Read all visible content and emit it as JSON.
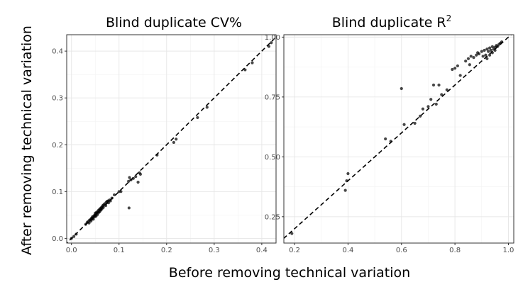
{
  "figure": {
    "xlabel": "Before removing technical variation",
    "ylabel": "After removing technical variation"
  },
  "chart_data": [
    {
      "type": "scatter",
      "title": "Blind duplicate CV%",
      "title_superscript": "",
      "xlim": [
        -0.01,
        0.43
      ],
      "ylim": [
        -0.01,
        0.435
      ],
      "x_ticks": [
        0.0,
        0.1,
        0.2,
        0.3,
        0.4
      ],
      "x_tick_labels": [
        "0.0",
        "0.1",
        "0.2",
        "0.3",
        "0.4"
      ],
      "y_ticks": [
        0.0,
        0.1,
        0.2,
        0.3,
        0.4
      ],
      "y_tick_labels": [
        "0.0",
        "0.1",
        "0.2",
        "0.3",
        "0.4"
      ],
      "grid": true,
      "reference_line": "y = x (dashed)",
      "points": [
        [
          0.0,
          0.0
        ],
        [
          0.005,
          0.004
        ],
        [
          0.01,
          0.009
        ],
        [
          0.03,
          0.03
        ],
        [
          0.033,
          0.034
        ],
        [
          0.035,
          0.036
        ],
        [
          0.037,
          0.033
        ],
        [
          0.038,
          0.039
        ],
        [
          0.04,
          0.04
        ],
        [
          0.041,
          0.037
        ],
        [
          0.042,
          0.043
        ],
        [
          0.043,
          0.041
        ],
        [
          0.044,
          0.046
        ],
        [
          0.045,
          0.044
        ],
        [
          0.046,
          0.041
        ],
        [
          0.047,
          0.048
        ],
        [
          0.048,
          0.046
        ],
        [
          0.049,
          0.05
        ],
        [
          0.05,
          0.049
        ],
        [
          0.05,
          0.054
        ],
        [
          0.051,
          0.047
        ],
        [
          0.052,
          0.053
        ],
        [
          0.053,
          0.056
        ],
        [
          0.054,
          0.05
        ],
        [
          0.055,
          0.057
        ],
        [
          0.056,
          0.054
        ],
        [
          0.057,
          0.06
        ],
        [
          0.058,
          0.056
        ],
        [
          0.059,
          0.062
        ],
        [
          0.06,
          0.058
        ],
        [
          0.061,
          0.064
        ],
        [
          0.062,
          0.061
        ],
        [
          0.063,
          0.066
        ],
        [
          0.064,
          0.063
        ],
        [
          0.065,
          0.068
        ],
        [
          0.066,
          0.07
        ],
        [
          0.067,
          0.066
        ],
        [
          0.068,
          0.072
        ],
        [
          0.07,
          0.074
        ],
        [
          0.072,
          0.07
        ],
        [
          0.073,
          0.077
        ],
        [
          0.075,
          0.079
        ],
        [
          0.077,
          0.08
        ],
        [
          0.078,
          0.076
        ],
        [
          0.08,
          0.082
        ],
        [
          0.082,
          0.08
        ],
        [
          0.085,
          0.086
        ],
        [
          0.09,
          0.093
        ],
        [
          0.1,
          0.1
        ],
        [
          0.104,
          0.1
        ],
        [
          0.12,
          0.122
        ],
        [
          0.121,
          0.065
        ],
        [
          0.122,
          0.13
        ],
        [
          0.125,
          0.125
        ],
        [
          0.13,
          0.128
        ],
        [
          0.135,
          0.132
        ],
        [
          0.14,
          0.12
        ],
        [
          0.143,
          0.14
        ],
        [
          0.145,
          0.137
        ],
        [
          0.18,
          0.178
        ],
        [
          0.215,
          0.205
        ],
        [
          0.22,
          0.212
        ],
        [
          0.265,
          0.258
        ],
        [
          0.285,
          0.28
        ],
        [
          0.365,
          0.36
        ],
        [
          0.38,
          0.375
        ],
        [
          0.415,
          0.41
        ],
        [
          0.42,
          0.418
        ]
      ]
    },
    {
      "type": "scatter",
      "title": "Blind duplicate R",
      "title_superscript": "2",
      "xlim": [
        0.16,
        1.02
      ],
      "ylim": [
        0.14,
        1.01
      ],
      "x_ticks": [
        0.2,
        0.4,
        0.6,
        0.8,
        1.0
      ],
      "x_tick_labels": [
        "0.2",
        "0.4",
        "0.6",
        "0.8",
        "1.0"
      ],
      "y_ticks": [
        0.25,
        0.5,
        0.75,
        1.0
      ],
      "y_tick_labels": [
        "0.25",
        "0.50",
        "0.75",
        "1.00"
      ],
      "grid": true,
      "reference_line": "y = x (dashed)",
      "points": [
        [
          0.19,
          0.18
        ],
        [
          0.39,
          0.36
        ],
        [
          0.395,
          0.4
        ],
        [
          0.4,
          0.43
        ],
        [
          0.54,
          0.575
        ],
        [
          0.56,
          0.565
        ],
        [
          0.6,
          0.785
        ],
        [
          0.61,
          0.635
        ],
        [
          0.65,
          0.64
        ],
        [
          0.67,
          0.67
        ],
        [
          0.68,
          0.7
        ],
        [
          0.7,
          0.71
        ],
        [
          0.71,
          0.74
        ],
        [
          0.72,
          0.8
        ],
        [
          0.73,
          0.72
        ],
        [
          0.74,
          0.8
        ],
        [
          0.75,
          0.76
        ],
        [
          0.77,
          0.78
        ],
        [
          0.79,
          0.865
        ],
        [
          0.8,
          0.87
        ],
        [
          0.81,
          0.88
        ],
        [
          0.82,
          0.84
        ],
        [
          0.84,
          0.9
        ],
        [
          0.85,
          0.91
        ],
        [
          0.855,
          0.885
        ],
        [
          0.86,
          0.92
        ],
        [
          0.87,
          0.915
        ],
        [
          0.88,
          0.925
        ],
        [
          0.885,
          0.935
        ],
        [
          0.89,
          0.93
        ],
        [
          0.9,
          0.94
        ],
        [
          0.905,
          0.92
        ],
        [
          0.91,
          0.945
        ],
        [
          0.915,
          0.925
        ],
        [
          0.92,
          0.95
        ],
        [
          0.925,
          0.94
        ],
        [
          0.93,
          0.955
        ],
        [
          0.935,
          0.945
        ],
        [
          0.94,
          0.96
        ],
        [
          0.945,
          0.95
        ],
        [
          0.95,
          0.958
        ],
        [
          0.955,
          0.965
        ],
        [
          0.96,
          0.962
        ],
        [
          0.965,
          0.97
        ],
        [
          0.97,
          0.975
        ],
        [
          0.975,
          0.98
        ],
        [
          0.92,
          0.91
        ],
        [
          0.93,
          0.925
        ],
        [
          0.94,
          0.935
        ],
        [
          0.95,
          0.945
        ]
      ]
    }
  ]
}
